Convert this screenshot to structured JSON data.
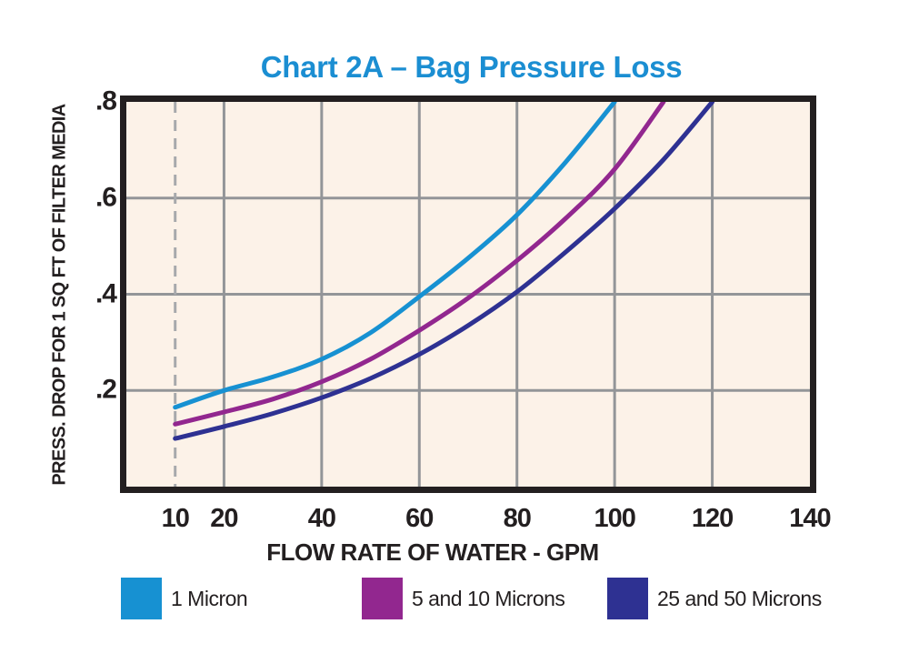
{
  "chart_data": {
    "type": "line",
    "title": "Chart 2A – Bag Pressure Loss",
    "title_color": "#1b8ed2",
    "xlabel": "FLOW RATE OF WATER - GPM",
    "ylabel": "PRESS. DROP FOR 1 SQ FT OF FILTER MEDIA",
    "xlim": [
      0,
      140
    ],
    "ylim": [
      0,
      0.8
    ],
    "x_ticks": [
      10,
      20,
      40,
      60,
      80,
      100,
      120,
      140
    ],
    "x_tick_labels": [
      "10",
      "20",
      "40",
      "60",
      "80",
      "100",
      "120",
      "140"
    ],
    "y_ticks": [
      0.2,
      0.4,
      0.6,
      0.8
    ],
    "y_tick_labels": [
      ".2",
      ".4",
      ".6",
      ".8"
    ],
    "x_gridlines": [
      20,
      40,
      60,
      80,
      100,
      120
    ],
    "y_gridlines": [
      0.2,
      0.4,
      0.6
    ],
    "dashed_vline_x": 10,
    "grid": true,
    "legend_position": "bottom",
    "plot_bg_color": "#fcf2e8",
    "grid_color": "#939598",
    "frame_color": "#231f20",
    "dashed_line_color": "#a7a9ac",
    "text_color": "#231f20",
    "series": [
      {
        "name": "1 Micron",
        "color": "#1791d2",
        "x": [
          10,
          20,
          30,
          40,
          50,
          60,
          70,
          80,
          90,
          100
        ],
        "y": [
          0.165,
          0.2,
          0.228,
          0.265,
          0.32,
          0.395,
          0.475,
          0.565,
          0.675,
          0.8
        ]
      },
      {
        "name": "5 and 10 Microns",
        "color": "#92278f",
        "x": [
          10,
          20,
          30,
          40,
          50,
          60,
          70,
          80,
          90,
          100,
          110
        ],
        "y": [
          0.13,
          0.155,
          0.182,
          0.218,
          0.265,
          0.325,
          0.392,
          0.47,
          0.558,
          0.66,
          0.8
        ]
      },
      {
        "name": "25 and 50 Microns",
        "color": "#2e3192",
        "x": [
          10,
          20,
          30,
          40,
          50,
          60,
          70,
          80,
          90,
          100,
          110,
          120
        ],
        "y": [
          0.1,
          0.125,
          0.152,
          0.185,
          0.225,
          0.275,
          0.335,
          0.405,
          0.488,
          0.578,
          0.68,
          0.8
        ]
      }
    ]
  }
}
